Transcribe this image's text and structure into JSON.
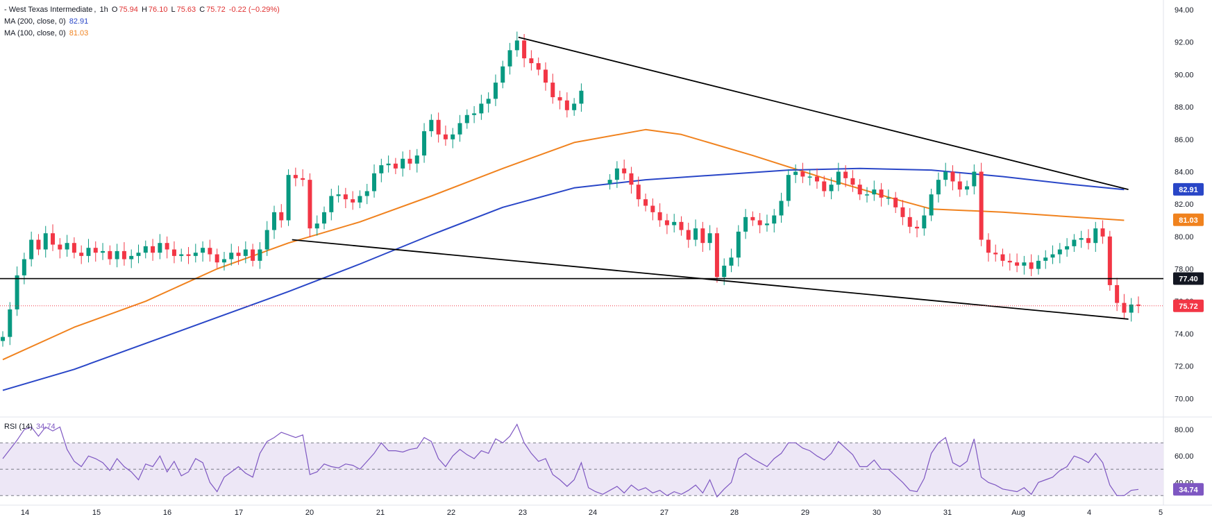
{
  "header": {
    "symbol": "- West Texas Intermediate",
    "interval": "1h",
    "open_label": "O",
    "open": "75.94",
    "high_label": "H",
    "high": "76.10",
    "low_label": "L",
    "low": "75.63",
    "close_label": "C",
    "close": "75.72",
    "change": "-0.22 (−0.29%)",
    "ma200_label": "MA (200, close, 0)",
    "ma200_value": "82.91",
    "ma100_label": "MA (100, close, 0)",
    "ma100_value": "81.03",
    "rsi_label": "RSI (14)",
    "rsi_value": "34.74"
  },
  "colors": {
    "up": "#089981",
    "down": "#f23645",
    "ma200": "#2946c7",
    "ma100": "#f0821e",
    "rsi": "#7e57c2",
    "rsi_band": "#ede7f6",
    "trendline": "#000000",
    "last_price": "#f23645"
  },
  "chart_data": {
    "type": "candlestick",
    "timeframe": "1h",
    "price_axis": {
      "ticks": [
        "94.00",
        "92.00",
        "90.00",
        "88.00",
        "86.00",
        "84.00",
        "82.00",
        "80.00",
        "78.00",
        "76.00",
        "74.00",
        "72.00",
        "70.00"
      ],
      "range": [
        68.9,
        94.6
      ]
    },
    "x_ticks": [
      "14",
      "15",
      "16",
      "17",
      "20",
      "21",
      "22",
      "23",
      "24",
      "27",
      "28",
      "29",
      "30",
      "31",
      "Aug",
      "4",
      "5"
    ],
    "badges": [
      {
        "value": "82.91",
        "color": "#2946c7"
      },
      {
        "value": "81.03",
        "color": "#f0821e"
      },
      {
        "value": "77.40",
        "color": "#131722"
      },
      {
        "value": "75.72",
        "color": "#f23645"
      }
    ],
    "horizontal_level": 77.4,
    "last_price": 75.72,
    "session_path": [
      [
        0,
        73.8
      ],
      [
        1,
        75.5
      ],
      [
        2,
        77.6
      ],
      [
        3,
        78.6
      ],
      [
        4,
        79.8
      ],
      [
        5,
        79.2
      ],
      [
        6,
        80.2
      ],
      [
        7,
        79.5
      ],
      [
        8,
        79.2
      ],
      [
        9,
        79.6
      ],
      [
        10,
        79.0
      ],
      [
        11,
        78.8
      ],
      [
        12,
        79.3
      ],
      [
        13,
        79.0
      ],
      [
        14,
        79.1
      ],
      [
        15,
        78.6
      ],
      [
        16,
        79.1
      ],
      [
        17,
        78.6
      ],
      [
        18,
        78.8
      ],
      [
        19,
        79.0
      ],
      [
        20,
        79.4
      ],
      [
        21,
        79.0
      ],
      [
        22,
        79.6
      ],
      [
        23,
        79.2
      ],
      [
        24,
        78.8
      ],
      [
        25,
        78.9
      ],
      [
        26,
        78.8
      ],
      [
        27,
        79.0
      ],
      [
        28,
        79.3
      ],
      [
        29,
        78.9
      ],
      [
        30,
        78.4
      ],
      [
        31,
        78.6
      ],
      [
        32,
        79.0
      ],
      [
        33,
        78.8
      ],
      [
        34,
        79.2
      ],
      [
        35,
        78.5
      ],
      [
        36,
        79.2
      ],
      [
        37,
        80.4
      ],
      [
        38,
        81.5
      ],
      [
        39,
        81.0
      ],
      [
        40,
        83.8
      ],
      [
        41,
        83.6
      ],
      [
        42,
        83.5
      ],
      [
        43,
        80.5
      ],
      [
        44,
        80.8
      ],
      [
        45,
        81.5
      ],
      [
        46,
        82.5
      ],
      [
        47,
        82.6
      ],
      [
        48,
        82.3
      ],
      [
        49,
        82.1
      ],
      [
        50,
        82.5
      ],
      [
        51,
        82.8
      ],
      [
        52,
        83.9
      ],
      [
        53,
        84.4
      ],
      [
        54,
        84.5
      ],
      [
        55,
        84.2
      ],
      [
        56,
        84.8
      ],
      [
        57,
        84.5
      ],
      [
        58,
        85.0
      ],
      [
        59,
        86.5
      ],
      [
        60,
        87.2
      ],
      [
        61,
        86.3
      ],
      [
        62,
        86.0
      ],
      [
        63,
        86.3
      ],
      [
        64,
        87.0
      ],
      [
        65,
        87.5
      ],
      [
        66,
        87.6
      ],
      [
        67,
        88.2
      ],
      [
        68,
        88.5
      ],
      [
        69,
        89.5
      ],
      [
        70,
        90.5
      ],
      [
        71,
        91.5
      ],
      [
        72,
        92.1
      ],
      [
        73,
        91.0
      ],
      [
        74,
        90.7
      ],
      [
        75,
        90.3
      ],
      [
        76,
        89.5
      ],
      [
        77,
        88.6
      ],
      [
        78,
        88.4
      ],
      [
        79,
        87.8
      ],
      [
        80,
        88.2
      ],
      [
        81,
        89.0
      ],
      [
        85,
        83.5
      ],
      [
        86,
        84.2
      ],
      [
        87,
        83.9
      ],
      [
        88,
        83.2
      ],
      [
        89,
        82.3
      ],
      [
        90,
        81.9
      ],
      [
        91,
        81.5
      ],
      [
        92,
        81.0
      ],
      [
        93,
        80.7
      ],
      [
        94,
        80.9
      ],
      [
        95,
        80.4
      ],
      [
        96,
        79.8
      ],
      [
        97,
        80.5
      ],
      [
        98,
        79.6
      ],
      [
        99,
        80.2
      ],
      [
        100,
        77.5
      ],
      [
        101,
        78.2
      ],
      [
        102,
        78.7
      ],
      [
        103,
        80.3
      ],
      [
        104,
        81.2
      ],
      [
        105,
        81.0
      ],
      [
        106,
        80.7
      ],
      [
        107,
        80.8
      ],
      [
        108,
        81.3
      ],
      [
        109,
        82.2
      ],
      [
        110,
        83.8
      ],
      [
        111,
        84.0
      ],
      [
        112,
        83.7
      ],
      [
        113,
        83.7
      ],
      [
        114,
        83.4
      ],
      [
        115,
        82.8
      ],
      [
        116,
        83.2
      ],
      [
        117,
        84.0
      ],
      [
        118,
        83.6
      ],
      [
        119,
        83.2
      ],
      [
        120,
        82.6
      ],
      [
        121,
        82.6
      ],
      [
        122,
        82.9
      ],
      [
        123,
        82.4
      ],
      [
        124,
        82.4
      ],
      [
        125,
        81.8
      ],
      [
        126,
        81.2
      ],
      [
        127,
        80.6
      ],
      [
        128,
        80.5
      ],
      [
        129,
        81.3
      ],
      [
        130,
        82.6
      ],
      [
        131,
        83.5
      ],
      [
        132,
        84.0
      ],
      [
        133,
        83.4
      ],
      [
        134,
        82.9
      ],
      [
        135,
        83.1
      ],
      [
        136,
        84.0
      ],
      [
        137,
        79.8
      ],
      [
        138,
        79.0
      ],
      [
        139,
        78.9
      ],
      [
        140,
        78.5
      ],
      [
        141,
        78.4
      ],
      [
        142,
        78.2
      ],
      [
        143,
        78.4
      ],
      [
        144,
        78.0
      ],
      [
        145,
        78.5
      ],
      [
        146,
        78.7
      ],
      [
        147,
        78.9
      ],
      [
        148,
        79.2
      ],
      [
        149,
        79.4
      ],
      [
        150,
        79.8
      ],
      [
        151,
        79.9
      ],
      [
        152,
        79.6
      ],
      [
        153,
        80.5
      ],
      [
        154,
        80.0
      ],
      [
        155,
        77.0
      ],
      [
        156,
        75.9
      ],
      [
        157,
        75.3
      ],
      [
        158,
        75.8
      ],
      [
        159,
        75.72
      ]
    ],
    "ma100_path": [
      [
        0,
        72.4
      ],
      [
        10,
        74.4
      ],
      [
        20,
        76.0
      ],
      [
        30,
        78.0
      ],
      [
        40,
        79.6
      ],
      [
        50,
        80.9
      ],
      [
        60,
        82.5
      ],
      [
        70,
        84.2
      ],
      [
        80,
        85.8
      ],
      [
        90,
        86.6
      ],
      [
        95,
        86.3
      ],
      [
        105,
        85.0
      ],
      [
        115,
        83.6
      ],
      [
        125,
        82.3
      ],
      [
        130,
        81.7
      ],
      [
        140,
        81.5
      ],
      [
        150,
        81.2
      ],
      [
        157,
        81.0
      ]
    ],
    "ma200_path": [
      [
        0,
        70.5
      ],
      [
        10,
        71.8
      ],
      [
        20,
        73.4
      ],
      [
        30,
        75.0
      ],
      [
        40,
        76.6
      ],
      [
        50,
        78.3
      ],
      [
        60,
        80.1
      ],
      [
        70,
        81.8
      ],
      [
        80,
        83.0
      ],
      [
        90,
        83.5
      ],
      [
        100,
        83.8
      ],
      [
        110,
        84.1
      ],
      [
        120,
        84.2
      ],
      [
        130,
        84.1
      ],
      [
        140,
        83.7
      ],
      [
        150,
        83.2
      ],
      [
        157,
        82.9
      ]
    ],
    "trendlines": [
      {
        "from": [
          72.2,
          92.3
        ],
        "to": [
          157.6,
          82.9
        ]
      },
      {
        "from": [
          40.5,
          79.8
        ],
        "to": [
          157.6,
          74.9
        ]
      }
    ],
    "rsi": {
      "axis_ticks": [
        "80.00",
        "60.00",
        "40.00"
      ],
      "band": [
        30,
        70
      ],
      "range": [
        27,
        88
      ],
      "path": [
        [
          0,
          58
        ],
        [
          2,
          72
        ],
        [
          3,
          80
        ],
        [
          4,
          82
        ],
        [
          5,
          75
        ],
        [
          6,
          82
        ],
        [
          7,
          79
        ],
        [
          8,
          82
        ],
        [
          9,
          65
        ],
        [
          10,
          56
        ],
        [
          11,
          52
        ],
        [
          12,
          60
        ],
        [
          13,
          58
        ],
        [
          14,
          55
        ],
        [
          15,
          49
        ],
        [
          16,
          58
        ],
        [
          17,
          52
        ],
        [
          18,
          48
        ],
        [
          19,
          42
        ],
        [
          20,
          54
        ],
        [
          21,
          52
        ],
        [
          22,
          60
        ],
        [
          23,
          48
        ],
        [
          24,
          56
        ],
        [
          25,
          45
        ],
        [
          26,
          48
        ],
        [
          27,
          58
        ],
        [
          28,
          55
        ],
        [
          29,
          40
        ],
        [
          30,
          33
        ],
        [
          31,
          44
        ],
        [
          32,
          48
        ],
        [
          33,
          52
        ],
        [
          34,
          47
        ],
        [
          35,
          44
        ],
        [
          36,
          62
        ],
        [
          37,
          71
        ],
        [
          38,
          74
        ],
        [
          39,
          78
        ],
        [
          40,
          76
        ],
        [
          41,
          74
        ],
        [
          42,
          76
        ],
        [
          43,
          46
        ],
        [
          44,
          48
        ],
        [
          45,
          54
        ],
        [
          46,
          52
        ],
        [
          47,
          51
        ],
        [
          48,
          54
        ],
        [
          49,
          53
        ],
        [
          50,
          50
        ],
        [
          51,
          56
        ],
        [
          52,
          62
        ],
        [
          53,
          70
        ],
        [
          54,
          64
        ],
        [
          55,
          64
        ],
        [
          56,
          63
        ],
        [
          57,
          65
        ],
        [
          58,
          66
        ],
        [
          59,
          74
        ],
        [
          60,
          71
        ],
        [
          61,
          58
        ],
        [
          62,
          52
        ],
        [
          63,
          60
        ],
        [
          64,
          65
        ],
        [
          65,
          61
        ],
        [
          66,
          58
        ],
        [
          67,
          64
        ],
        [
          68,
          62
        ],
        [
          69,
          73
        ],
        [
          70,
          70
        ],
        [
          71,
          75
        ],
        [
          72,
          84
        ],
        [
          73,
          70
        ],
        [
          74,
          62
        ],
        [
          75,
          56
        ],
        [
          76,
          58
        ],
        [
          77,
          46
        ],
        [
          78,
          42
        ],
        [
          79,
          37
        ],
        [
          80,
          42
        ],
        [
          81,
          55
        ],
        [
          82,
          36
        ],
        [
          83,
          33
        ],
        [
          84,
          31
        ],
        [
          85,
          34
        ],
        [
          86,
          37
        ],
        [
          87,
          32
        ],
        [
          88,
          38
        ],
        [
          89,
          34
        ],
        [
          90,
          36
        ],
        [
          91,
          32
        ],
        [
          92,
          34
        ],
        [
          93,
          30
        ],
        [
          94,
          33
        ],
        [
          95,
          31
        ],
        [
          96,
          34
        ],
        [
          97,
          38
        ],
        [
          98,
          32
        ],
        [
          99,
          42
        ],
        [
          100,
          29
        ],
        [
          101,
          35
        ],
        [
          102,
          40
        ],
        [
          103,
          58
        ],
        [
          104,
          62
        ],
        [
          105,
          58
        ],
        [
          106,
          55
        ],
        [
          107,
          52
        ],
        [
          108,
          58
        ],
        [
          109,
          62
        ],
        [
          110,
          70
        ],
        [
          111,
          70
        ],
        [
          112,
          66
        ],
        [
          113,
          64
        ],
        [
          114,
          60
        ],
        [
          115,
          57
        ],
        [
          116,
          62
        ],
        [
          117,
          71
        ],
        [
          118,
          66
        ],
        [
          119,
          61
        ],
        [
          120,
          52
        ],
        [
          121,
          52
        ],
        [
          122,
          57
        ],
        [
          123,
          50
        ],
        [
          124,
          50
        ],
        [
          125,
          45
        ],
        [
          126,
          40
        ],
        [
          127,
          34
        ],
        [
          128,
          33
        ],
        [
          129,
          43
        ],
        [
          130,
          62
        ],
        [
          131,
          70
        ],
        [
          132,
          74
        ],
        [
          133,
          55
        ],
        [
          134,
          52
        ],
        [
          135,
          56
        ],
        [
          136,
          73
        ],
        [
          137,
          44
        ],
        [
          138,
          40
        ],
        [
          139,
          38
        ],
        [
          140,
          35
        ],
        [
          141,
          34
        ],
        [
          142,
          33
        ],
        [
          143,
          36
        ],
        [
          144,
          31
        ],
        [
          145,
          40
        ],
        [
          146,
          42
        ],
        [
          147,
          44
        ],
        [
          148,
          49
        ],
        [
          149,
          52
        ],
        [
          150,
          60
        ],
        [
          151,
          58
        ],
        [
          152,
          55
        ],
        [
          153,
          62
        ],
        [
          154,
          55
        ],
        [
          155,
          38
        ],
        [
          156,
          30
        ],
        [
          157,
          30
        ],
        [
          158,
          34
        ],
        [
          159,
          34.74
        ]
      ]
    }
  }
}
